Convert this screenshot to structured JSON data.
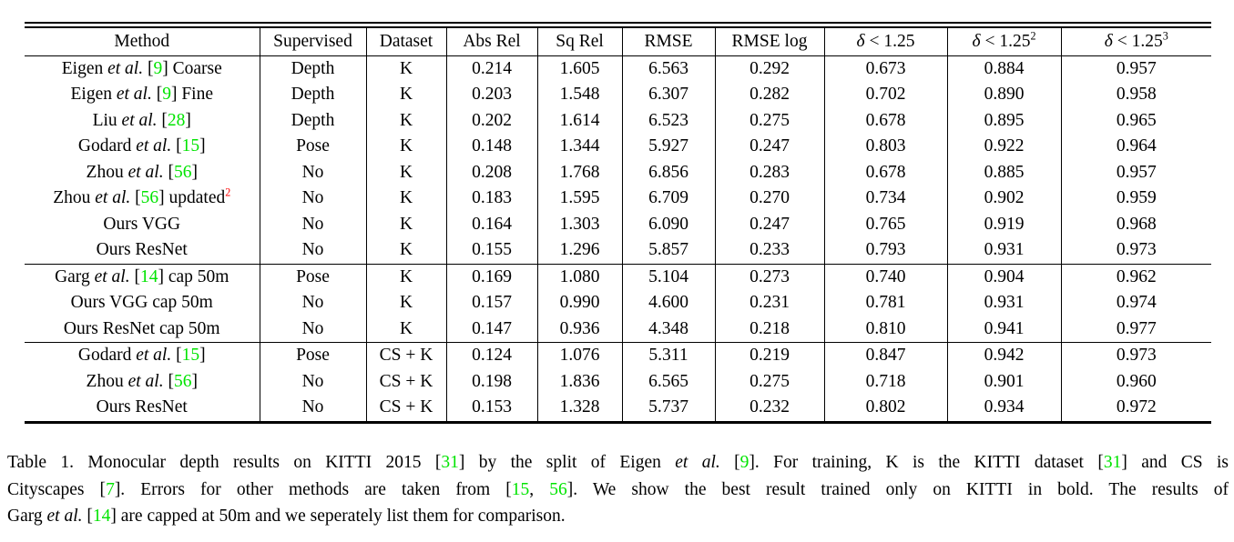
{
  "colors": {
    "citation_green": "#00e400",
    "footnote_red": "#ff0000",
    "text": "#000000",
    "background": "#ffffff"
  },
  "table": {
    "columns": [
      {
        "label": "Method"
      },
      {
        "label": "Supervised"
      },
      {
        "label": "Dataset"
      },
      {
        "label": "Abs Rel"
      },
      {
        "label": "Sq Rel"
      },
      {
        "label": "RMSE"
      },
      {
        "label": "RMSE log"
      },
      {
        "sym": "δ",
        "label": " < 1.25",
        "sup": ""
      },
      {
        "sym": "δ",
        "label": " < 1.25",
        "sup": "2"
      },
      {
        "sym": "δ",
        "label": " < 1.25",
        "sup": "3"
      }
    ],
    "groups": [
      {
        "rows": [
          {
            "method": [
              {
                "t": "Eigen "
              },
              {
                "t": "et al.",
                "i": 1
              },
              {
                "t": " ["
              },
              {
                "t": "9",
                "g": 1
              },
              {
                "t": "] Coarse"
              }
            ],
            "supervised": "Depth",
            "dataset": "K",
            "values": [
              "0.214",
              "1.605",
              "6.563",
              "0.292",
              "0.673",
              "0.884",
              "0.957"
            ],
            "bold": [
              0,
              0,
              0,
              0,
              0,
              0,
              0
            ]
          },
          {
            "method": [
              {
                "t": "Eigen "
              },
              {
                "t": "et al.",
                "i": 1
              },
              {
                "t": " ["
              },
              {
                "t": "9",
                "g": 1
              },
              {
                "t": "] Fine"
              }
            ],
            "supervised": "Depth",
            "dataset": "K",
            "values": [
              "0.203",
              "1.548",
              "6.307",
              "0.282",
              "0.702",
              "0.890",
              "0.958"
            ],
            "bold": [
              0,
              0,
              0,
              0,
              0,
              0,
              0
            ]
          },
          {
            "method": [
              {
                "t": "Liu "
              },
              {
                "t": "et al.",
                "i": 1
              },
              {
                "t": " ["
              },
              {
                "t": "28",
                "g": 1
              },
              {
                "t": "]"
              }
            ],
            "supervised": "Depth",
            "dataset": "K",
            "values": [
              "0.202",
              "1.614",
              "6.523",
              "0.275",
              "0.678",
              "0.895",
              "0.965"
            ],
            "bold": [
              0,
              0,
              0,
              0,
              0,
              0,
              0
            ]
          },
          {
            "method": [
              {
                "t": "Godard "
              },
              {
                "t": "et al.",
                "i": 1
              },
              {
                "t": " ["
              },
              {
                "t": "15",
                "g": 1
              },
              {
                "t": "]"
              }
            ],
            "supervised": "Pose",
            "dataset": "K",
            "values": [
              "0.148",
              "1.344",
              "5.927",
              "0.247",
              "0.803",
              "0.922",
              "0.964"
            ],
            "bold": [
              1,
              0,
              0,
              0,
              1,
              0,
              0
            ]
          },
          {
            "method": [
              {
                "t": "Zhou "
              },
              {
                "t": "et al.",
                "i": 1
              },
              {
                "t": " ["
              },
              {
                "t": "56",
                "g": 1
              },
              {
                "t": "]"
              }
            ],
            "supervised": "No",
            "dataset": "K",
            "values": [
              "0.208",
              "1.768",
              "6.856",
              "0.283",
              "0.678",
              "0.885",
              "0.957"
            ],
            "bold": [
              0,
              0,
              0,
              0,
              0,
              0,
              0
            ]
          },
          {
            "method": [
              {
                "t": "Zhou "
              },
              {
                "t": "et al.",
                "i": 1
              },
              {
                "t": " ["
              },
              {
                "t": "56",
                "g": 1
              },
              {
                "t": "] updated"
              },
              {
                "t": "2",
                "r": 1,
                "sup": 1
              }
            ],
            "supervised": "No",
            "dataset": "K",
            "values": [
              "0.183",
              "1.595",
              "6.709",
              "0.270",
              "0.734",
              "0.902",
              "0.959"
            ],
            "bold": [
              0,
              0,
              0,
              0,
              0,
              0,
              0
            ]
          },
          {
            "method": [
              {
                "t": "Ours VGG"
              }
            ],
            "supervised": "No",
            "dataset": "K",
            "values": [
              "0.164",
              "1.303",
              "6.090",
              "0.247",
              "0.765",
              "0.919",
              "0.968"
            ],
            "bold": [
              0,
              0,
              0,
              0,
              0,
              0,
              0
            ]
          },
          {
            "method": [
              {
                "t": "Ours ResNet"
              }
            ],
            "supervised": "No",
            "dataset": "K",
            "values": [
              "0.155",
              "1.296",
              "5.857",
              "0.233",
              "0.793",
              "0.931",
              "0.973"
            ],
            "bold": [
              0,
              1,
              1,
              1,
              0,
              1,
              1
            ]
          }
        ]
      },
      {
        "rows": [
          {
            "method": [
              {
                "t": "Garg "
              },
              {
                "t": "et al.",
                "i": 1
              },
              {
                "t": " ["
              },
              {
                "t": "14",
                "g": 1
              },
              {
                "t": "] cap 50m"
              }
            ],
            "supervised": "Pose",
            "dataset": "K",
            "values": [
              "0.169",
              "1.080",
              "5.104",
              "0.273",
              "0.740",
              "0.904",
              "0.962"
            ],
            "bold": [
              0,
              0,
              0,
              0,
              0,
              0,
              0
            ]
          },
          {
            "method": [
              {
                "t": "Ours VGG cap 50m"
              }
            ],
            "supervised": "No",
            "dataset": "K",
            "values": [
              "0.157",
              "0.990",
              "4.600",
              "0.231",
              "0.781",
              "0.931",
              "0.974"
            ],
            "bold": [
              0,
              0,
              0,
              0,
              0,
              0,
              0
            ]
          },
          {
            "method": [
              {
                "t": "Ours ResNet cap 50m"
              }
            ],
            "supervised": "No",
            "dataset": "K",
            "values": [
              "0.147",
              "0.936",
              "4.348",
              "0.218",
              "0.810",
              "0.941",
              "0.977"
            ],
            "bold": [
              1,
              1,
              1,
              1,
              1,
              1,
              1
            ]
          }
        ]
      },
      {
        "rows": [
          {
            "method": [
              {
                "t": "Godard "
              },
              {
                "t": "et al.",
                "i": 1
              },
              {
                "t": " ["
              },
              {
                "t": "15",
                "g": 1
              },
              {
                "t": "]"
              }
            ],
            "supervised": "Pose",
            "dataset": "CS + K",
            "values": [
              "0.124",
              "1.076",
              "5.311",
              "0.219",
              "0.847",
              "0.942",
              "0.973"
            ],
            "bold": [
              1,
              1,
              1,
              1,
              1,
              1,
              1
            ]
          },
          {
            "method": [
              {
                "t": "Zhou "
              },
              {
                "t": "et al.",
                "i": 1
              },
              {
                "t": " ["
              },
              {
                "t": "56",
                "g": 1
              },
              {
                "t": "]"
              }
            ],
            "supervised": "No",
            "dataset": "CS + K",
            "values": [
              "0.198",
              "1.836",
              "6.565",
              "0.275",
              "0.718",
              "0.901",
              "0.960"
            ],
            "bold": [
              0,
              0,
              0,
              0,
              0,
              0,
              0
            ]
          },
          {
            "method": [
              {
                "t": "Ours ResNet"
              }
            ],
            "supervised": "No",
            "dataset": "CS + K",
            "values": [
              "0.153",
              "1.328",
              "5.737",
              "0.232",
              "0.802",
              "0.934",
              "0.972"
            ],
            "bold": [
              0,
              0,
              0,
              0,
              0,
              0,
              0
            ]
          }
        ]
      }
    ]
  },
  "caption": {
    "lines": [
      [
        {
          "t": "Table 1. Monocular depth results on KITTI 2015 ["
        },
        {
          "t": "31",
          "g": 1
        },
        {
          "t": "] by the split of Eigen "
        },
        {
          "t": "et al.",
          "i": 1
        },
        {
          "t": " ["
        },
        {
          "t": "9",
          "g": 1
        },
        {
          "t": "]. For training, K is the KITTI dataset ["
        },
        {
          "t": "31",
          "g": 1
        },
        {
          "t": "] and CS is"
        }
      ],
      [
        {
          "t": "Cityscapes ["
        },
        {
          "t": "7",
          "g": 1
        },
        {
          "t": "]. Errors for other methods are taken from ["
        },
        {
          "t": "15",
          "g": 1
        },
        {
          "t": ", "
        },
        {
          "t": "56",
          "g": 1
        },
        {
          "t": "]. We show the best result trained only on KITTI in bold. The results of"
        }
      ],
      [
        {
          "t": "Garg "
        },
        {
          "t": "et al.",
          "i": 1
        },
        {
          "t": " ["
        },
        {
          "t": "14",
          "g": 1
        },
        {
          "t": "] are capped at 50m and we seperately list them for comparison."
        }
      ]
    ]
  }
}
